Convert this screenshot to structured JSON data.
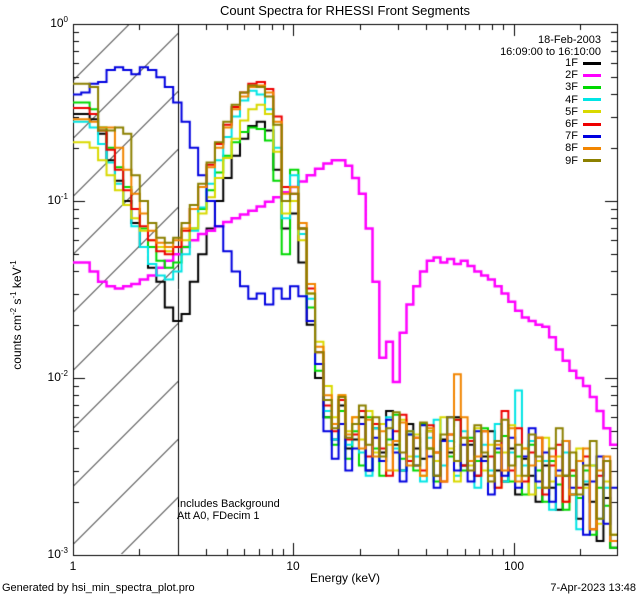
{
  "title": "Count Spectra for RHESSI Front Segments",
  "annotations": {
    "date": "18-Feb-2003",
    "interval": "16:09:00 to 16:10:00",
    "note1": "Includes Background",
    "note2": "Att A0, FDecim 1"
  },
  "footer": {
    "generator": "Generated by hsi_min_spectra_plot.pro",
    "timestamp": "7-Apr-2023 13:48"
  },
  "chart_data": {
    "type": "line",
    "subtype": "step-histogram-log-log",
    "title": "Count Spectra for RHESSI Front Segments",
    "xlabel": "Energy (keV)",
    "ylabel": "counts cm-2 s-1 keV-1",
    "ylabel_parts": [
      "counts cm",
      "-2",
      " s",
      "-1",
      " keV",
      "-1"
    ],
    "xscale": "log",
    "yscale": "log",
    "xlim": [
      1,
      295
    ],
    "ylim": [
      0.001,
      1.0
    ],
    "x_ticks": [
      "1",
      "10",
      "100"
    ],
    "y_ticks": [
      {
        "base": "10",
        "exp": "0"
      },
      {
        "base": "10",
        "exp": "-1"
      },
      {
        "base": "10",
        "exp": "-2"
      },
      {
        "base": "10",
        "exp": "-3"
      }
    ],
    "grid": false,
    "legend_position": "top-right-inside",
    "hatch_region_kev": [
      1.0,
      3.0
    ],
    "energy_bin_edges_kev": [
      1.0,
      1.09,
      1.19,
      1.3,
      1.42,
      1.55,
      1.69,
      1.84,
      2.01,
      2.19,
      2.39,
      2.61,
      2.85,
      3.11,
      3.39,
      3.7,
      4.04,
      4.41,
      4.81,
      5.25,
      5.73,
      6.25,
      6.82,
      7.44,
      8.12,
      8.86,
      9.67,
      10.55,
      11.51,
      12.56,
      13.71,
      14.96,
      16.06,
      17.24,
      18.51,
      19.87,
      21.33,
      22.9,
      24.59,
      26.4,
      28.34,
      30.43,
      32.67,
      35.07,
      37.65,
      40.42,
      43.39,
      46.58,
      50.01,
      53.69,
      57.64,
      61.88,
      66.43,
      71.32,
      76.57,
      82.2,
      88.25,
      94.74,
      101.7,
      109.2,
      117.2,
      125.9,
      135.1,
      145.1,
      155.7,
      167.2,
      179.5,
      192.7,
      206.9,
      222.1,
      238.4,
      256.0,
      274.8,
      295.0
    ],
    "series": [
      {
        "name": "1F",
        "color": "#000000",
        "line_width": 2,
        "values": [
          0.31,
          0.31,
          0.29,
          0.24,
          0.17,
          0.13,
          0.1,
          0.075,
          0.055,
          0.042,
          0.035,
          0.025,
          0.021,
          0.023,
          0.035,
          0.05,
          0.07,
          0.1,
          0.135,
          0.18,
          0.225,
          0.265,
          0.28,
          0.25,
          0.15,
          0.07,
          0.085,
          0.045,
          0.02,
          0.01,
          0.006,
          0.0045,
          0.007,
          0.004,
          0.0045,
          0.006,
          0.003,
          0.0052,
          0.0038,
          0.0065,
          0.0042,
          0.003,
          0.0055,
          0.004,
          0.0035,
          0.005,
          0.0028,
          0.0045,
          0.0038,
          0.006,
          0.0032,
          0.0042,
          0.0028,
          0.0036,
          0.005,
          0.003,
          0.0026,
          0.004,
          0.0022,
          0.0035,
          0.0028,
          0.002,
          0.0032,
          0.0024,
          0.0018,
          0.0028,
          0.0022,
          0.0016,
          0.0025,
          0.002,
          0.0012,
          0.0021,
          0.0011
        ]
      },
      {
        "name": "2F",
        "color": "#ff00ff",
        "line_width": 2.5,
        "values": [
          0.045,
          0.045,
          0.04,
          0.035,
          0.033,
          0.032,
          0.033,
          0.034,
          0.036,
          0.038,
          0.042,
          0.046,
          0.05,
          0.055,
          0.06,
          0.065,
          0.068,
          0.072,
          0.076,
          0.08,
          0.084,
          0.088,
          0.093,
          0.099,
          0.105,
          0.112,
          0.12,
          0.129,
          0.14,
          0.152,
          0.163,
          0.17,
          0.17,
          0.158,
          0.135,
          0.11,
          0.07,
          0.035,
          0.013,
          0.016,
          0.0095,
          0.018,
          0.026,
          0.033,
          0.04,
          0.046,
          0.048,
          0.045,
          0.047,
          0.044,
          0.046,
          0.043,
          0.04,
          0.038,
          0.036,
          0.033,
          0.03,
          0.027,
          0.024,
          0.022,
          0.021,
          0.02,
          0.0195,
          0.017,
          0.0145,
          0.0125,
          0.011,
          0.01,
          0.009,
          0.0078,
          0.0065,
          0.0052,
          0.0042
        ]
      },
      {
        "name": "3F",
        "color": "#00d900",
        "line_width": 2,
        "values": [
          0.36,
          0.36,
          0.33,
          0.26,
          0.2,
          0.155,
          0.12,
          0.09,
          0.07,
          0.055,
          0.046,
          0.042,
          0.045,
          0.055,
          0.07,
          0.09,
          0.115,
          0.145,
          0.18,
          0.215,
          0.245,
          0.26,
          0.255,
          0.22,
          0.13,
          0.05,
          0.15,
          0.07,
          0.025,
          0.011,
          0.006,
          0.0042,
          0.0065,
          0.0035,
          0.005,
          0.0032,
          0.006,
          0.004,
          0.0028,
          0.0045,
          0.0062,
          0.0035,
          0.0048,
          0.003,
          0.0055,
          0.004,
          0.0026,
          0.0044,
          0.0036,
          0.0058,
          0.003,
          0.0046,
          0.0034,
          0.0052,
          0.0028,
          0.0038,
          0.0047,
          0.0026,
          0.0036,
          0.0022,
          0.0042,
          0.003,
          0.002,
          0.0034,
          0.0025,
          0.0018,
          0.0028,
          0.0021,
          0.003,
          0.0013,
          0.0024,
          0.0019,
          0.0011
        ]
      },
      {
        "name": "4F",
        "color": "#00e5e5",
        "line_width": 2,
        "values": [
          0.28,
          0.28,
          0.26,
          0.21,
          0.165,
          0.125,
          0.095,
          0.072,
          0.055,
          0.044,
          0.038,
          0.036,
          0.04,
          0.05,
          0.068,
          0.092,
          0.125,
          0.17,
          0.23,
          0.3,
          0.37,
          0.42,
          0.4,
          0.33,
          0.2,
          0.08,
          0.14,
          0.065,
          0.028,
          0.012,
          0.0065,
          0.0045,
          0.0075,
          0.0042,
          0.0055,
          0.0038,
          0.0028,
          0.0052,
          0.0034,
          0.006,
          0.004,
          0.003,
          0.005,
          0.0036,
          0.0026,
          0.0046,
          0.0058,
          0.0032,
          0.0044,
          0.0028,
          0.005,
          0.0034,
          0.0024,
          0.0042,
          0.003,
          0.0055,
          0.0026,
          0.0038,
          0.0085,
          0.0032,
          0.0044,
          0.0024,
          0.0034,
          0.0018,
          0.0028,
          0.0038,
          0.0022,
          0.0014,
          0.0026,
          0.0032,
          0.0016,
          0.0024,
          0.0012
        ]
      },
      {
        "name": "5F",
        "color": "#d9d900",
        "line_width": 2,
        "values": [
          0.215,
          0.215,
          0.2,
          0.17,
          0.14,
          0.115,
          0.095,
          0.08,
          0.068,
          0.06,
          0.055,
          0.052,
          0.055,
          0.06,
          0.07,
          0.085,
          0.105,
          0.135,
          0.175,
          0.225,
          0.285,
          0.33,
          0.35,
          0.31,
          0.19,
          0.085,
          0.1,
          0.06,
          0.03,
          0.016,
          0.009,
          0.006,
          0.008,
          0.005,
          0.006,
          0.0045,
          0.0065,
          0.0038,
          0.0055,
          0.0042,
          0.003,
          0.0058,
          0.0036,
          0.0048,
          0.0028,
          0.005,
          0.0034,
          0.006,
          0.004,
          0.0026,
          0.0046,
          0.0032,
          0.0052,
          0.003,
          0.0042,
          0.0024,
          0.0038,
          0.0054,
          0.0028,
          0.004,
          0.0022,
          0.0034,
          0.0046,
          0.0026,
          0.0036,
          0.002,
          0.003,
          0.004,
          0.0024,
          0.0032,
          0.0015,
          0.0026,
          0.0013
        ]
      },
      {
        "name": "6F",
        "color": "#ee0000",
        "line_width": 2,
        "values": [
          0.335,
          0.335,
          0.31,
          0.25,
          0.195,
          0.15,
          0.115,
          0.09,
          0.072,
          0.06,
          0.052,
          0.05,
          0.055,
          0.068,
          0.09,
          0.12,
          0.16,
          0.21,
          0.27,
          0.34,
          0.41,
          0.46,
          0.47,
          0.43,
          0.3,
          0.12,
          0.11,
          0.07,
          0.032,
          0.014,
          0.007,
          0.005,
          0.0075,
          0.0045,
          0.0048,
          0.0065,
          0.0036,
          0.0055,
          0.004,
          0.0028,
          0.005,
          0.0062,
          0.0034,
          0.0046,
          0.003,
          0.0054,
          0.0038,
          0.0026,
          0.0048,
          0.0058,
          0.0032,
          0.0044,
          0.0028,
          0.005,
          0.0036,
          0.0024,
          0.0065,
          0.003,
          0.0052,
          0.0026,
          0.0038,
          0.0046,
          0.0022,
          0.0032,
          0.0042,
          0.002,
          0.003,
          0.0024,
          0.0036,
          0.0014,
          0.0028,
          0.0034,
          0.0012
        ]
      },
      {
        "name": "7F",
        "color": "#0000e0",
        "line_width": 2,
        "values": [
          0.4,
          0.41,
          0.46,
          0.47,
          0.55,
          0.57,
          0.55,
          0.52,
          0.57,
          0.55,
          0.5,
          0.44,
          0.36,
          0.28,
          0.2,
          0.14,
          0.1,
          0.072,
          0.052,
          0.04,
          0.033,
          0.028,
          0.03,
          0.026,
          0.032,
          0.028,
          0.033,
          0.029,
          0.021,
          0.012,
          0.005,
          0.0035,
          0.0055,
          0.003,
          0.004,
          0.0055,
          0.003,
          0.0046,
          0.0034,
          0.0058,
          0.0038,
          0.0026,
          0.0048,
          0.0032,
          0.0054,
          0.0036,
          0.0024,
          0.0044,
          0.006,
          0.003,
          0.0042,
          0.0026,
          0.005,
          0.0034,
          0.0022,
          0.004,
          0.0028,
          0.0046,
          0.0024,
          0.0036,
          0.0052,
          0.0026,
          0.0038,
          0.002,
          0.003,
          0.0044,
          0.0024,
          0.0034,
          0.0013,
          0.0026,
          0.0036,
          0.0015,
          0.0024
        ]
      },
      {
        "name": "8F",
        "color": "#f28500",
        "line_width": 2,
        "values": [
          0.29,
          0.29,
          0.28,
          0.26,
          0.26,
          0.2,
          0.15,
          0.11,
          0.085,
          0.068,
          0.058,
          0.055,
          0.06,
          0.07,
          0.09,
          0.12,
          0.155,
          0.2,
          0.26,
          0.33,
          0.39,
          0.44,
          0.45,
          0.41,
          0.28,
          0.11,
          0.12,
          0.075,
          0.034,
          0.015,
          0.008,
          0.0055,
          0.008,
          0.0048,
          0.006,
          0.004,
          0.0058,
          0.0036,
          0.005,
          0.003,
          0.0044,
          0.0056,
          0.0032,
          0.0046,
          0.0028,
          0.0052,
          0.0038,
          0.0026,
          0.0048,
          0.0105,
          0.006,
          0.0034,
          0.0036,
          0.005,
          0.0028,
          0.0042,
          0.003,
          0.0052,
          0.0026,
          0.004,
          0.0032,
          0.0046,
          0.0024,
          0.0036,
          0.0028,
          0.0044,
          0.0022,
          0.0034,
          0.004,
          0.0014,
          0.003,
          0.0036,
          0.0012
        ]
      },
      {
        "name": "9F",
        "color": "#8c8000",
        "line_width": 2,
        "values": [
          0.46,
          0.46,
          0.44,
          0.25,
          0.25,
          0.26,
          0.24,
          0.14,
          0.1,
          0.075,
          0.062,
          0.058,
          0.062,
          0.075,
          0.095,
          0.125,
          0.165,
          0.215,
          0.28,
          0.35,
          0.41,
          0.45,
          0.44,
          0.39,
          0.27,
          0.1,
          0.11,
          0.07,
          0.03,
          0.014,
          0.0075,
          0.0052,
          0.0078,
          0.0046,
          0.0055,
          0.007,
          0.0042,
          0.006,
          0.0036,
          0.0052,
          0.0064,
          0.0038,
          0.005,
          0.0032,
          0.0056,
          0.004,
          0.0028,
          0.0048,
          0.006,
          0.0034,
          0.0046,
          0.003,
          0.0054,
          0.0038,
          0.0026,
          0.0044,
          0.0058,
          0.0032,
          0.0042,
          0.0028,
          0.0048,
          0.0036,
          0.0024,
          0.004,
          0.0052,
          0.0028,
          0.0038,
          0.0022,
          0.0032,
          0.0044,
          0.0016,
          0.0034,
          0.0013
        ]
      }
    ]
  }
}
